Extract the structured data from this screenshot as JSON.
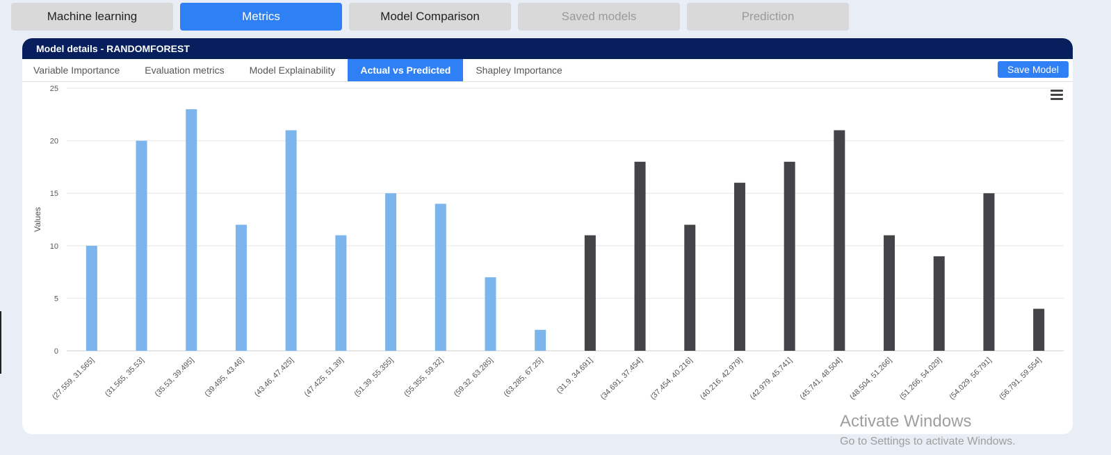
{
  "top_tabs": [
    {
      "label": "Machine learning",
      "state": "normal"
    },
    {
      "label": "Metrics",
      "state": "active"
    },
    {
      "label": "Model Comparison",
      "state": "normal"
    },
    {
      "label": "Saved models",
      "state": "disabled"
    },
    {
      "label": "Prediction",
      "state": "disabled"
    }
  ],
  "panel": {
    "title": "Model details - RANDOMFOREST",
    "subtabs": [
      {
        "label": "Variable Importance"
      },
      {
        "label": "Evaluation metrics"
      },
      {
        "label": "Model Explainability"
      },
      {
        "label": "Actual vs Predicted"
      },
      {
        "label": "Shapley Importance"
      }
    ],
    "active_subtab": 3,
    "save_label": "Save Model"
  },
  "chart_menu_icon": "hamburger-menu-icon",
  "colors": {
    "accent": "#2f7ff5",
    "header": "#071f5c",
    "series1": "#7cb5ec",
    "series2": "#434348"
  },
  "chart_data": {
    "type": "bar",
    "ylabel": "Values",
    "xlabel": "",
    "ylim": [
      0,
      25
    ],
    "yticks": [
      0,
      5,
      10,
      15,
      20,
      25
    ],
    "grid": true,
    "categories": [
      "(27.559, 31.565]",
      "(31.565, 35.53]",
      "(35.53, 39.495]",
      "(39.495, 43.46]",
      "(43.46, 47.425]",
      "(47.425, 51.39]",
      "(51.39, 55.355]",
      "(55.355, 59.32]",
      "(59.32, 63.285]",
      "(63.285, 67.25]",
      "(31.9, 34.691]",
      "(34.691, 37.454]",
      "(37.454, 40.216]",
      "(40.216, 42.979]",
      "(42.979, 45.741]",
      "(45.741, 48.504]",
      "(48.504, 51.266]",
      "(51.266, 54.029]",
      "(54.029, 56.791]",
      "(56.791, 59.554]"
    ],
    "series": [
      {
        "color": "#7cb5ec",
        "values": [
          10,
          20,
          23,
          12,
          21,
          11,
          15,
          14,
          7,
          2,
          null,
          null,
          null,
          null,
          null,
          null,
          null,
          null,
          null,
          null
        ]
      },
      {
        "color": "#434348",
        "values": [
          null,
          null,
          null,
          null,
          null,
          null,
          null,
          null,
          null,
          null,
          11,
          18,
          12,
          16,
          18,
          21,
          11,
          9,
          15,
          4
        ]
      }
    ]
  },
  "watermark": {
    "line1": "Activate Windows",
    "line2": "Go to Settings to activate Windows."
  }
}
